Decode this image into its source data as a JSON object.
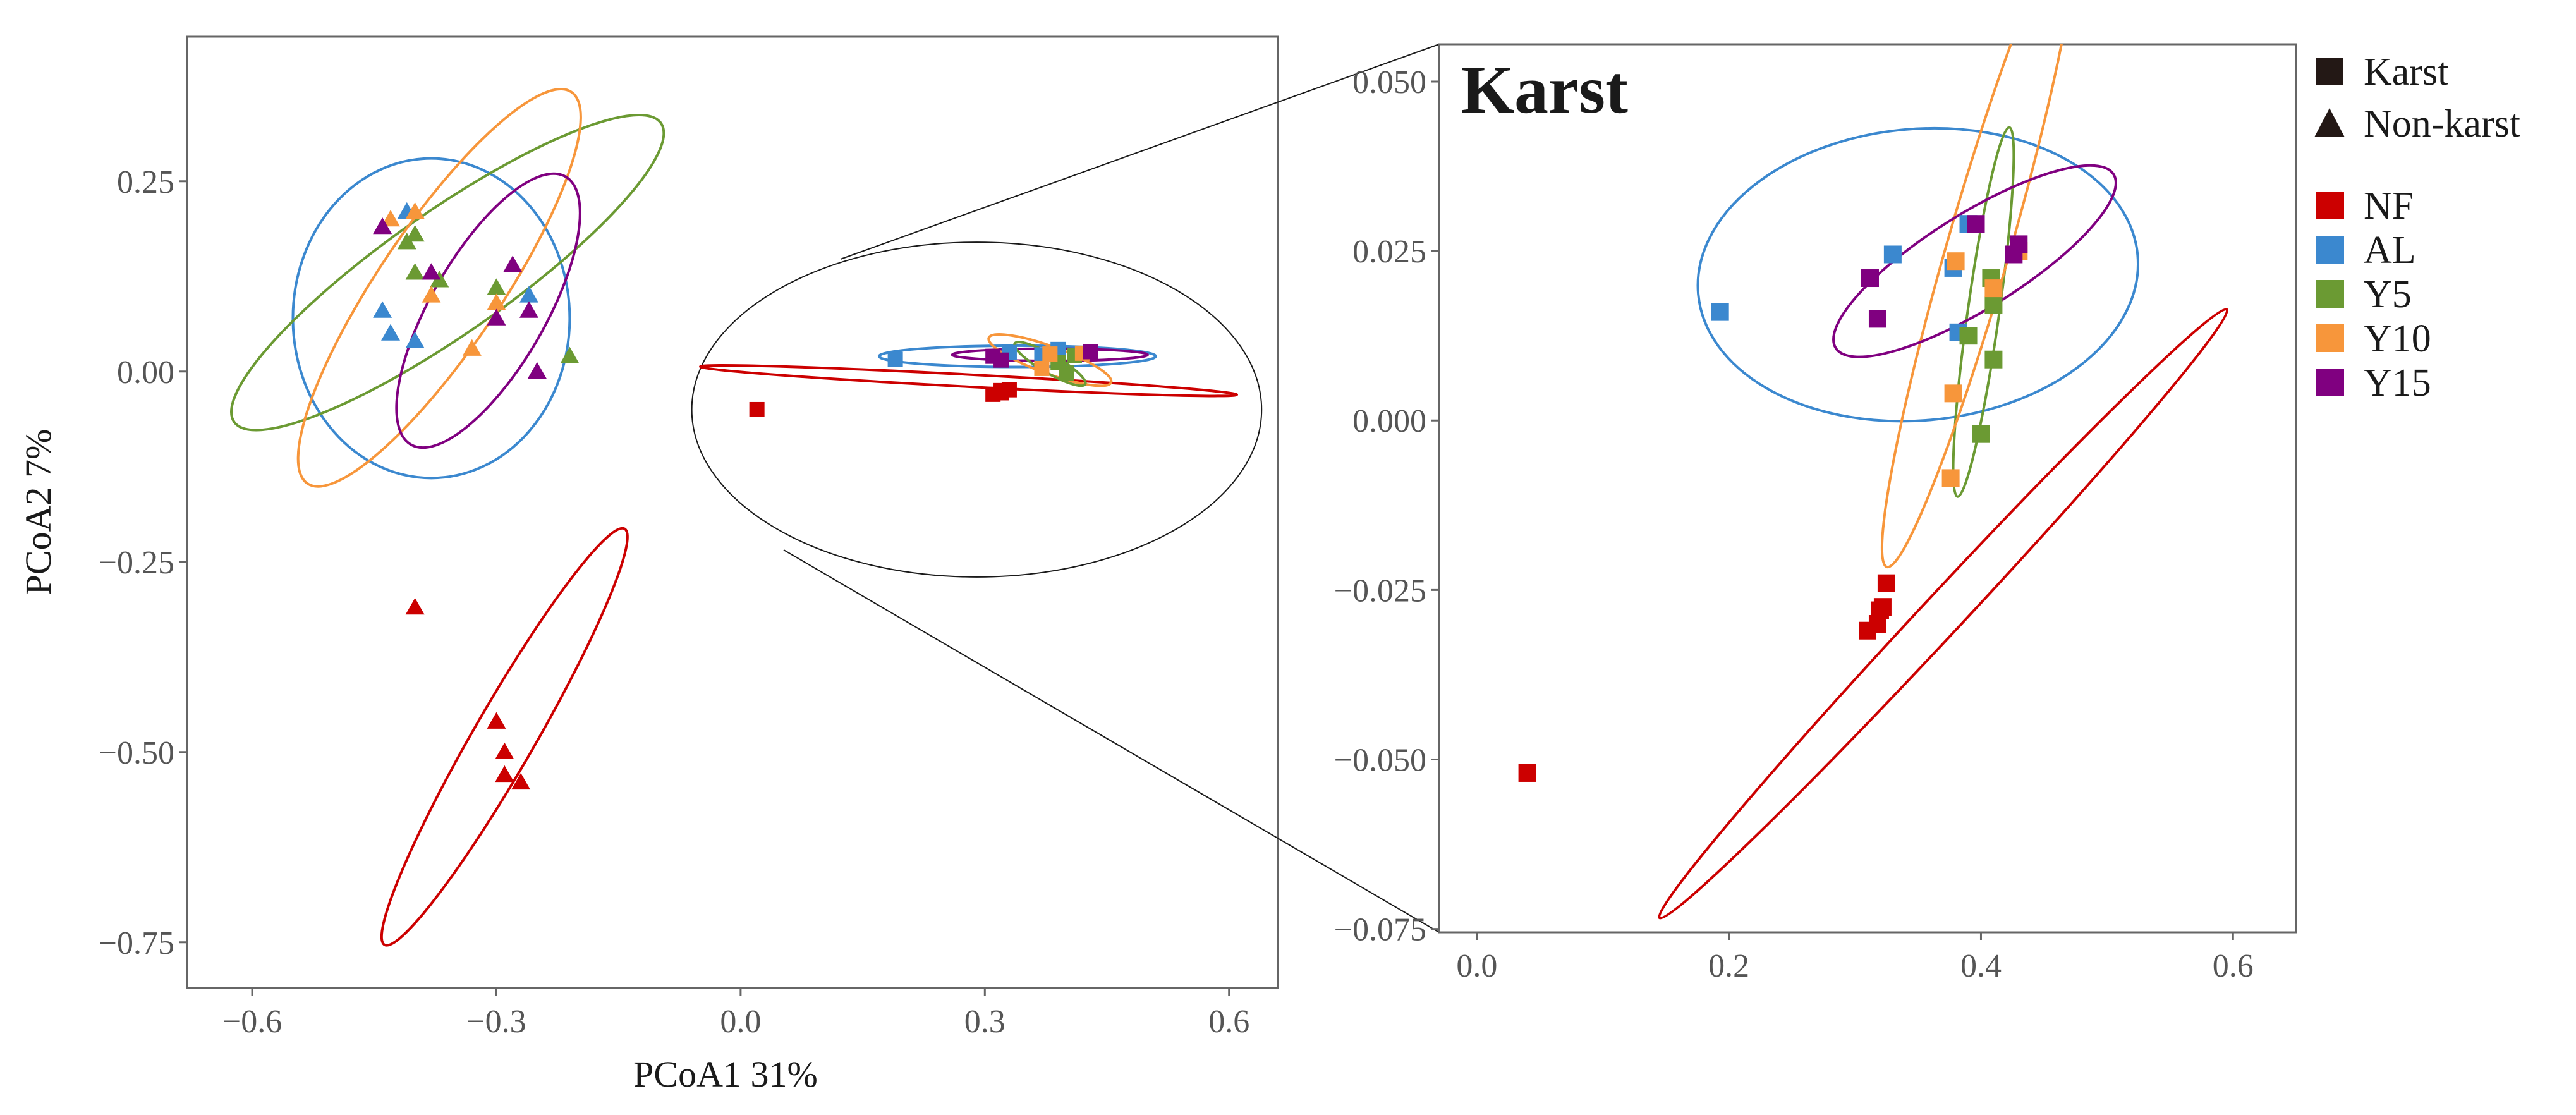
{
  "colors": {
    "NF": "#cc0000",
    "AL": "#3b88cf",
    "Y5": "#6b9a33",
    "Y10": "#f7963b",
    "Y15": "#800080",
    "frame": "#666666",
    "text": "#1a1a1a"
  },
  "legend": {
    "shapes": [
      {
        "name": "Karst",
        "shape": "square"
      },
      {
        "name": "Non-karst",
        "shape": "triangle"
      }
    ],
    "groups": [
      "NF",
      "AL",
      "Y5",
      "Y10",
      "Y15"
    ]
  },
  "chart_data": [
    {
      "type": "scatter",
      "title": "",
      "xlabel": "PCoA1 31%",
      "ylabel": "PCoA2 7%",
      "xlim": [
        -0.68,
        0.66
      ],
      "ylim": [
        -0.81,
        0.44
      ],
      "xticks": [
        -0.6,
        -0.3,
        0.0,
        0.3,
        0.6
      ],
      "xtick_labels": [
        "−0.6",
        "−0.3",
        "0.0",
        "0.3",
        "0.6"
      ],
      "yticks": [
        0.25,
        0.0,
        -0.25,
        -0.5,
        -0.75
      ],
      "ytick_labels": [
        "0.25",
        "0.00",
        "−0.25",
        "−0.50",
        "−0.75"
      ],
      "grid": false,
      "ellipses": [
        {
          "group": "AL",
          "cx": -0.38,
          "cy": 0.07,
          "rx": 0.17,
          "ry": 0.21,
          "angle": 0
        },
        {
          "group": "Y5",
          "cx": -0.36,
          "cy": 0.13,
          "rx": 0.32,
          "ry": 0.08,
          "angle": -35
        },
        {
          "group": "Y10",
          "cx": -0.37,
          "cy": 0.11,
          "rx": 0.29,
          "ry": 0.08,
          "angle": -56
        },
        {
          "group": "Y15",
          "cx": -0.31,
          "cy": 0.08,
          "rx": 0.19,
          "ry": 0.075,
          "angle": -60
        },
        {
          "group": "NF",
          "cx": -0.29,
          "cy": -0.48,
          "rx": 0.295,
          "ry": 0.04,
          "angle": -60
        },
        {
          "group": "NF",
          "cx": 0.28,
          "cy": -0.012,
          "rx": 0.33,
          "ry": 0.008,
          "angle": 3
        },
        {
          "group": "AL",
          "cx": 0.34,
          "cy": 0.02,
          "rx": 0.17,
          "ry": 0.014,
          "angle": 0
        },
        {
          "group": "Y15",
          "cx": 0.38,
          "cy": 0.022,
          "rx": 0.12,
          "ry": 0.008,
          "angle": 0
        },
        {
          "group": "Y10",
          "cx": 0.38,
          "cy": 0.015,
          "rx": 0.08,
          "ry": 0.018,
          "angle": 20
        },
        {
          "group": "Y5",
          "cx": 0.38,
          "cy": 0.01,
          "rx": 0.05,
          "ry": 0.012,
          "angle": 30
        }
      ],
      "zoom_circle": {
        "cx": 0.29,
        "cy": -0.05,
        "rx": 0.35,
        "ry": 0.22
      },
      "series": [
        {
          "name": "AL",
          "shape": "triangle",
          "points": [
            [
              -0.44,
              0.08
            ],
            [
              -0.43,
              0.05
            ],
            [
              -0.41,
              0.21
            ],
            [
              -0.4,
              0.04
            ],
            [
              -0.26,
              0.1
            ]
          ]
        },
        {
          "name": "Y5",
          "shape": "triangle",
          "points": [
            [
              -0.41,
              0.17
            ],
            [
              -0.4,
              0.18
            ],
            [
              -0.4,
              0.13
            ],
            [
              -0.37,
              0.12
            ],
            [
              -0.3,
              0.11
            ],
            [
              -0.21,
              0.02
            ]
          ]
        },
        {
          "name": "Y10",
          "shape": "triangle",
          "points": [
            [
              -0.43,
              0.2
            ],
            [
              -0.4,
              0.21
            ],
            [
              -0.38,
              0.1
            ],
            [
              -0.33,
              0.03
            ],
            [
              -0.3,
              0.09
            ]
          ]
        },
        {
          "name": "Y15",
          "shape": "triangle",
          "points": [
            [
              -0.44,
              0.19
            ],
            [
              -0.38,
              0.13
            ],
            [
              -0.3,
              0.07
            ],
            [
              -0.28,
              0.14
            ],
            [
              -0.26,
              0.08
            ],
            [
              -0.25,
              0.0
            ]
          ]
        },
        {
          "name": "NF",
          "shape": "triangle",
          "points": [
            [
              -0.4,
              -0.31
            ],
            [
              -0.3,
              -0.46
            ],
            [
              -0.29,
              -0.5
            ],
            [
              -0.29,
              -0.53
            ],
            [
              -0.27,
              -0.54
            ]
          ]
        },
        {
          "name": "NF",
          "shape": "square",
          "points": [
            [
              0.02,
              -0.05
            ],
            [
              0.31,
              -0.03
            ],
            [
              0.32,
              -0.028
            ],
            [
              0.32,
              -0.025
            ],
            [
              0.33,
              -0.024
            ]
          ]
        },
        {
          "name": "AL",
          "shape": "square",
          "points": [
            [
              0.19,
              0.016
            ],
            [
              0.33,
              0.025
            ],
            [
              0.37,
              0.022
            ],
            [
              0.39,
              0.029
            ]
          ]
        },
        {
          "name": "Y5",
          "shape": "square",
          "points": [
            [
              0.39,
              0.012
            ],
            [
              0.4,
              -0.002
            ],
            [
              0.41,
              0.021
            ]
          ]
        },
        {
          "name": "Y10",
          "shape": "square",
          "points": [
            [
              0.37,
              0.004
            ],
            [
              0.38,
              0.023
            ],
            [
              0.42,
              0.024
            ]
          ]
        },
        {
          "name": "Y15",
          "shape": "square",
          "points": [
            [
              0.31,
              0.02
            ],
            [
              0.32,
              0.015
            ],
            [
              0.43,
              0.026
            ]
          ]
        }
      ]
    },
    {
      "type": "scatter",
      "title": "Karst",
      "xlabel": "",
      "ylabel": "",
      "xlim": [
        -0.03,
        0.65
      ],
      "ylim": [
        -0.0755,
        0.0555
      ],
      "xticks": [
        0.0,
        0.2,
        0.4,
        0.6
      ],
      "xtick_labels": [
        "0.0",
        "0.2",
        "0.4",
        "0.6"
      ],
      "yticks": [
        0.05,
        0.025,
        0.0,
        -0.025,
        -0.05,
        -0.075
      ],
      "ytick_labels": [
        "0.050",
        "0.025",
        "0.000",
        "−0.025",
        "−0.050",
        "−0.075"
      ],
      "grid": false,
      "series": [
        {
          "name": "NF",
          "shape": "square",
          "points": [
            [
              0.04,
              -0.052
            ],
            [
              0.31,
              -0.031
            ],
            [
              0.318,
              -0.03
            ],
            [
              0.32,
              -0.028
            ],
            [
              0.322,
              -0.0275
            ],
            [
              0.325,
              -0.024
            ]
          ]
        },
        {
          "name": "AL",
          "shape": "square",
          "points": [
            [
              0.193,
              0.016
            ],
            [
              0.33,
              0.0245
            ],
            [
              0.378,
              0.0225
            ],
            [
              0.382,
              0.013
            ],
            [
              0.39,
              0.029
            ]
          ]
        },
        {
          "name": "Y5",
          "shape": "square",
          "points": [
            [
              0.39,
              0.0125
            ],
            [
              0.4,
              -0.002
            ],
            [
              0.408,
              0.021
            ],
            [
              0.41,
              0.009
            ],
            [
              0.41,
              0.017
            ]
          ]
        },
        {
          "name": "Y10",
          "shape": "square",
          "points": [
            [
              0.376,
              -0.0085
            ],
            [
              0.378,
              0.004
            ],
            [
              0.38,
              0.0235
            ],
            [
              0.41,
              0.0195
            ],
            [
              0.43,
              0.025
            ]
          ]
        },
        {
          "name": "Y15",
          "shape": "square",
          "points": [
            [
              0.312,
              0.021
            ],
            [
              0.318,
              0.015
            ],
            [
              0.396,
              0.029
            ],
            [
              0.426,
              0.0245
            ],
            [
              0.43,
              0.026
            ]
          ]
        }
      ],
      "ellipses": [
        {
          "group": "NF",
          "cx": 0.37,
          "cy": -0.0285,
          "rx": 0.33,
          "ry": 0.003,
          "angle": -47
        },
        {
          "group": "AL",
          "cx": 0.35,
          "cy": 0.0215,
          "rx": 0.175,
          "ry": 0.0215,
          "angle": -5
        },
        {
          "group": "Y5",
          "cx": 0.402,
          "cy": 0.016,
          "rx": 0.0125,
          "ry": 0.0275,
          "angle": 8
        },
        {
          "group": "Y10",
          "cx": 0.398,
          "cy": 0.0255,
          "rx": 0.025,
          "ry": 0.049,
          "angle": 16
        },
        {
          "group": "Y15",
          "cx": 0.395,
          "cy": 0.0235,
          "rx": 0.13,
          "ry": 0.007,
          "angle": -32
        }
      ]
    }
  ]
}
